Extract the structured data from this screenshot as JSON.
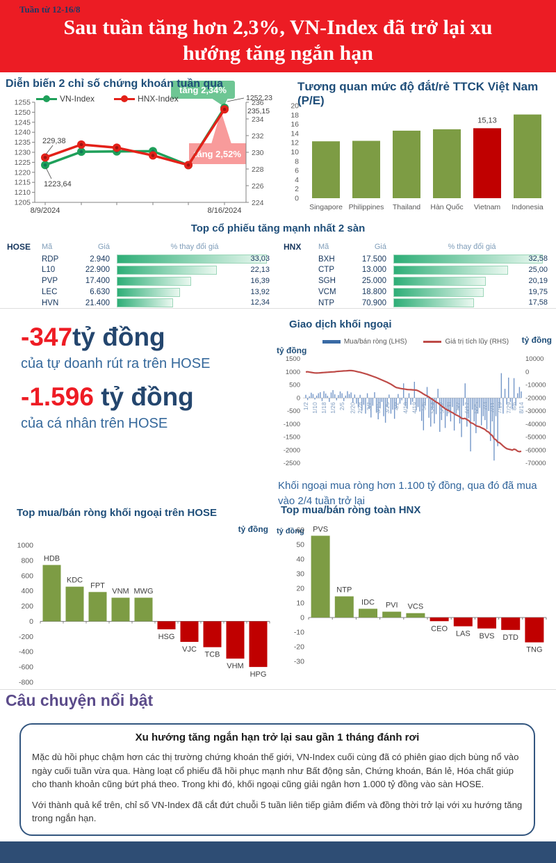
{
  "header": {
    "week": "Tuần từ 12-16/8",
    "title": "Sau tuần tăng hơn 2,3%, VN-Index đã trở lại xu hướng tăng ngắn hạn"
  },
  "colors": {
    "banner_red": "#EC1C24",
    "navy": "#1F4E79",
    "purple": "#5B4B8A",
    "olive_green": "#7D9C44",
    "bar_red": "#C00000",
    "vn_green": "#1FA05A",
    "hnx_red": "#E32119",
    "callout_green": "#6EC694",
    "callout_pink": "#F89B9B",
    "flow_bar": "#7396C8",
    "flow_bar_legend": "#3A6BA5",
    "cum_red": "#BE4B48",
    "footer_navy": "#2E4D74",
    "table_bar_green": "#2EAE77"
  },
  "stats": {
    "value1": "-347",
    "unit1": "tỷ đồng",
    "caption1": "của tự doanh rút ra trên HOSE",
    "value2": "-1.596",
    "unit2": "tỷ đồng",
    "caption2": "của cá nhân trên HOSE"
  },
  "notes": {
    "foreign": "Khối ngoại mua ròng hơn 1.100 tỷ đồng, qua đó đã mua vào 2/4 tuần trở lại"
  },
  "story": {
    "heading": "Câu chuyện nổi bật",
    "title": "Xu hướng tăng ngắn hạn trở lại sau gần 1 tháng đánh rơi",
    "p1": "Mặc dù hồi phục chậm hơn các thị trường chứng khoán thế giới, VN-Index cuối cùng đã có phiên giao dịch bùng nổ vào ngày cuối tuần vừa qua. Hàng loạt cổ phiếu đã hồi phục mạnh như Bất động sản, Chứng khoán, Bán lẻ, Hóa chất giúp cho thanh khoản cũng bứt phá theo. Trong khi đó, khối ngoại cũng giải ngân hơn 1.000 tỷ đồng vào sàn HOSE.",
    "p2": "Với thành quả kể trên, chỉ số VN-Index đã cắt đứt chuỗi 5 tuần liên tiếp giảm điểm và đồng thời trở lại với xu hướng tăng trong ngắn hạn."
  },
  "chart_data": [
    {
      "id": "index-lines",
      "type": "line",
      "title": "Diễn biến 2 chỉ số chứng khoán tuần qua",
      "x_labels": [
        "8/9/2024",
        "8/16/2024"
      ],
      "left_axis": {
        "min": 1205,
        "max": 1255,
        "step": 5
      },
      "right_axis": {
        "min": 224,
        "max": 236,
        "step": 2
      },
      "series": [
        {
          "name": "VN-Index",
          "axis": "left",
          "color": "#1FA05A",
          "values": [
            1223.64,
            1230.28,
            1230.42,
            1230.55,
            1223.56,
            1252.23
          ]
        },
        {
          "name": "HNX-Index",
          "axis": "right",
          "color": "#E32119",
          "values": [
            229.38,
            230.93,
            230.55,
            229.62,
            228.47,
            235.15
          ]
        }
      ],
      "annotations": {
        "p1_vn": "1223,64",
        "p1_hnx": "229,38",
        "p6_vn": "1252,23",
        "p6_hnx": "235,15"
      },
      "callouts": [
        {
          "text": "tăng 2,34%",
          "color": "#6EC694"
        },
        {
          "text": "tăng 2,52%",
          "color": "#F89B9B"
        }
      ]
    },
    {
      "id": "pe-compare",
      "type": "bar",
      "title": "Tương quan mức độ đắt/rẻ TTCK Việt Nam (P/E)",
      "categories": [
        "Singapore",
        "Philippines",
        "Thailand",
        "Hàn Quốc",
        "Vietnam",
        "Indonesia"
      ],
      "values": [
        12.3,
        12.4,
        14.6,
        14.9,
        15.13,
        18.1
      ],
      "highlight_index": 4,
      "highlight_label": "15,13",
      "ylim": [
        0,
        20
      ],
      "step": 2,
      "bar_color": "#7D9C44",
      "highlight_color": "#C00000"
    },
    {
      "id": "top-stocks",
      "type": "table",
      "title": "Top cổ phiếu tăng mạnh nhất 2 sàn",
      "scale_max": 34,
      "tables": [
        {
          "exchange": "HOSE",
          "headers": [
            "Mã",
            "Giá",
            "% thay đổi giá"
          ],
          "rows": [
            {
              "code": "RDP",
              "price": "2.940",
              "pct": 33.03,
              "pct_label": "33,03"
            },
            {
              "code": "L10",
              "price": "22.900",
              "pct": 22.13,
              "pct_label": "22,13"
            },
            {
              "code": "PVP",
              "price": "17.400",
              "pct": 16.39,
              "pct_label": "16,39"
            },
            {
              "code": "LEC",
              "price": "6.630",
              "pct": 13.92,
              "pct_label": "13,92"
            },
            {
              "code": "HVN",
              "price": "21.400",
              "pct": 12.34,
              "pct_label": "12,34"
            }
          ]
        },
        {
          "exchange": "HNX",
          "headers": [
            "Mã",
            "Giá",
            "% thay đổi giá"
          ],
          "rows": [
            {
              "code": "BXH",
              "price": "17.500",
              "pct": 32.58,
              "pct_label": "32,58"
            },
            {
              "code": "CTP",
              "price": "13.000",
              "pct": 25.0,
              "pct_label": "25,00"
            },
            {
              "code": "SGH",
              "price": "25.000",
              "pct": 20.19,
              "pct_label": "20,19"
            },
            {
              "code": "VCM",
              "price": "18.800",
              "pct": 19.75,
              "pct_label": "19,75"
            },
            {
              "code": "NTP",
              "price": "70.900",
              "pct": 17.58,
              "pct_label": "17,58"
            }
          ]
        }
      ]
    },
    {
      "id": "foreign-flow",
      "type": "bar+line",
      "title": "Giao dịch khối ngoại",
      "legend": [
        "Mua/bán ròng (LHS)",
        "Giá trị tích lũy (RHS)"
      ],
      "unit_left": "tỷ đồng",
      "unit_right": "tỷ đồng",
      "left_axis": {
        "min": -2500,
        "max": 1500,
        "step": 500
      },
      "right_axis": {
        "min": -70000,
        "max": 10000,
        "step": 10000
      },
      "x_ticks": [
        {
          "label": "1/2",
          "i": 0
        },
        {
          "label": "1/10",
          "i": 5
        },
        {
          "label": "1/18",
          "i": 10
        },
        {
          "label": "1/26",
          "i": 15
        },
        {
          "label": "2/5",
          "i": 20
        },
        {
          "label": "2/20",
          "i": 26
        },
        {
          "label": "2/28",
          "i": 30
        },
        {
          "label": "3/7",
          "i": 35
        },
        {
          "label": "3/15",
          "i": 40
        },
        {
          "label": "3/25",
          "i": 45
        },
        {
          "label": "4/2",
          "i": 50
        },
        {
          "label": "4/10",
          "i": 55
        },
        {
          "label": "4/19",
          "i": 60
        },
        {
          "label": "5/6",
          "i": 65
        },
        {
          "label": "5/14",
          "i": 70
        },
        {
          "label": "5/22",
          "i": 75
        },
        {
          "label": "5/30",
          "i": 79
        },
        {
          "label": "6/7",
          "i": 84
        },
        {
          "label": "6/17",
          "i": 89
        },
        {
          "label": "6/25",
          "i": 94
        },
        {
          "label": "7/3",
          "i": 99
        },
        {
          "label": "7/11",
          "i": 103
        },
        {
          "label": "7/19",
          "i": 107
        },
        {
          "label": "7/29",
          "i": 112
        },
        {
          "label": "8/6",
          "i": 115
        },
        {
          "label": "8/14",
          "i": 119
        }
      ],
      "bars": [
        120,
        -80,
        60,
        200,
        150,
        -60,
        90,
        180,
        220,
        -120,
        260,
        170,
        80,
        -150,
        210,
        300,
        140,
        -90,
        110,
        250,
        180,
        -120,
        90,
        260,
        150,
        210,
        -170,
        130,
        -220,
        -350,
        120,
        -480,
        -260,
        -600,
        180,
        -420,
        -750,
        -300,
        220,
        -550,
        -820,
        -400,
        -150,
        -700,
        -950,
        -350,
        130,
        -600,
        -450,
        -800,
        -380,
        150,
        -220,
        -90,
        560,
        -310,
        -420,
        180,
        -260,
        -150,
        620,
        -480,
        -350,
        -520,
        -880,
        -1240,
        -300,
        420,
        -760,
        -1100,
        -450,
        -980,
        -620,
        350,
        -1300,
        -850,
        -400,
        -1150,
        -700,
        -500,
        -900,
        -350,
        -1250,
        -600,
        -420,
        -980,
        -1500,
        -300,
        560,
        -1100,
        -780,
        -2050,
        -450,
        -900,
        -1350,
        -600,
        -380,
        -1050,
        -700,
        -850,
        -1200,
        -500,
        -1650,
        -900,
        -2400,
        -700,
        -1850,
        -400,
        950,
        -600,
        350,
        -250,
        780,
        -150,
        -420,
        760,
        -300,
        180,
        420,
        250
      ],
      "cumulative": [
        0,
        100,
        -200,
        -400,
        -600,
        -800,
        -900,
        -800,
        -700,
        -600,
        -500,
        -400,
        -300,
        -200,
        -100,
        0,
        100,
        300,
        400,
        500,
        600,
        700,
        800,
        900,
        1000,
        1000,
        900,
        600,
        300,
        0,
        -300,
        -700,
        -1100,
        -1500,
        -1900,
        -2400,
        -2900,
        -3400,
        -3900,
        -4400,
        -5000,
        -5600,
        -6200,
        -6800,
        -7400,
        -8000,
        -8700,
        -9400,
        -10300,
        -11200,
        -12000,
        -12300,
        -12600,
        -12900,
        -13100,
        -13300,
        -13500,
        -13600,
        -13700,
        -13800,
        -13900,
        -14000,
        -14500,
        -15200,
        -16000,
        -17000,
        -17800,
        -18400,
        -19300,
        -20300,
        -21200,
        -22200,
        -23200,
        -23800,
        -25000,
        -26200,
        -27200,
        -28300,
        -29100,
        -29800,
        -30600,
        -31200,
        -32200,
        -33000,
        -33600,
        -34400,
        -35600,
        -35900,
        -35700,
        -36600,
        -37300,
        -39000,
        -39400,
        -40200,
        -41300,
        -41800,
        -42100,
        -42900,
        -43500,
        -44200,
        -45500,
        -46200,
        -47800,
        -48800,
        -51200,
        -52000,
        -53800,
        -54300,
        -55500,
        -56800,
        -58000,
        -58900,
        -59300,
        -59600,
        -60000,
        -59300,
        -59700,
        -60800,
        -61200,
        -60900
      ]
    },
    {
      "id": "hose-net",
      "type": "bar",
      "title": "Top mua/bán ròng khối ngoại trên HOSE",
      "unit": "tỷ đồng",
      "categories": [
        "HDB",
        "KDC",
        "FPT",
        "VNM",
        "MWG",
        "HSG",
        "VJC",
        "TCB",
        "VHM",
        "HPG"
      ],
      "values": [
        740,
        455,
        385,
        310,
        310,
        -105,
        -270,
        -340,
        -490,
        -600
      ],
      "ylim": [
        -800,
        1000
      ],
      "step": 200,
      "pos_color": "#7D9C44",
      "neg_color": "#C00000"
    },
    {
      "id": "hnx-net",
      "type": "bar",
      "title": "Top mua/bán ròng toàn HNX",
      "unit": "tỷ đồng",
      "categories": [
        "PVS",
        "NTP",
        "IDC",
        "PVI",
        "VCS",
        "CEO",
        "LAS",
        "BVS",
        "DTD",
        "TNG"
      ],
      "values": [
        56,
        14.5,
        6,
        4,
        3,
        -2.5,
        -6,
        -7.5,
        -8.5,
        -17
      ],
      "ylim": [
        -30,
        60
      ],
      "step": 10,
      "pos_color": "#7D9C44",
      "neg_color": "#C00000"
    }
  ]
}
